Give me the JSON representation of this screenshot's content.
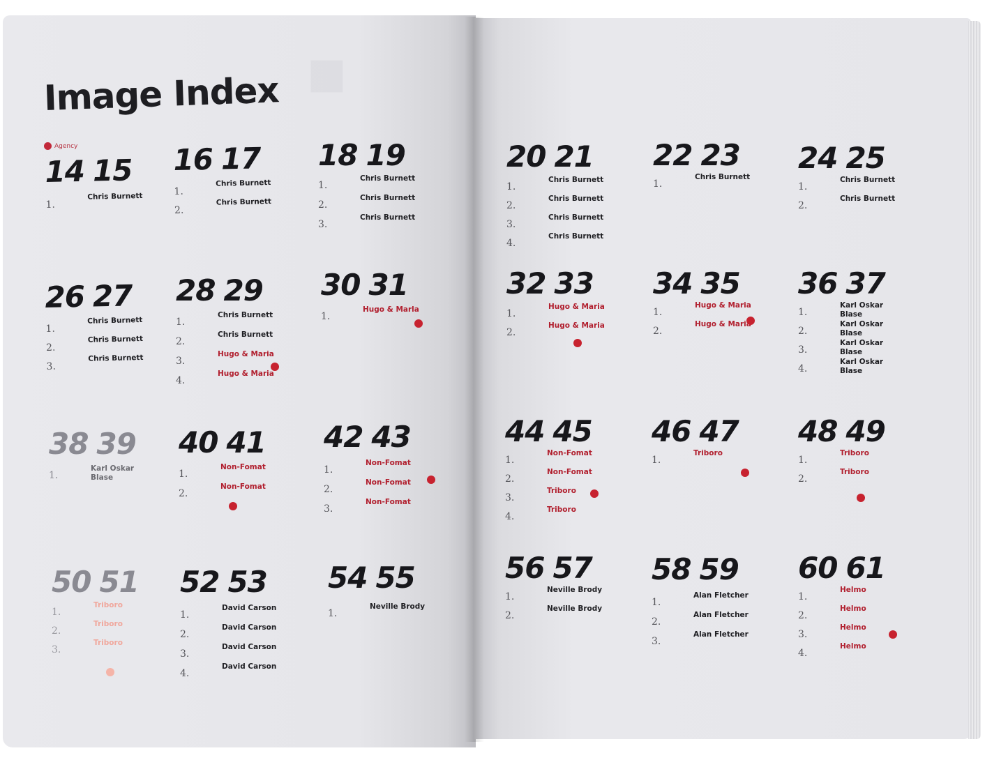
{
  "title": "Image Index",
  "agency_label": "Agency",
  "colors": {
    "accent_red": "#c7222f",
    "text": "#17171b",
    "paper": "#e7e7eb"
  },
  "entries": [
    {
      "pages": [
        "14",
        "15"
      ],
      "items": [
        {
          "n": "1.",
          "who": "Chris Burnett"
        }
      ]
    },
    {
      "pages": [
        "16",
        "17"
      ],
      "items": [
        {
          "n": "1.",
          "who": "Chris Burnett"
        },
        {
          "n": "2.",
          "who": "Chris Burnett"
        }
      ]
    },
    {
      "pages": [
        "18",
        "19"
      ],
      "items": [
        {
          "n": "1.",
          "who": "Chris Burnett"
        },
        {
          "n": "2.",
          "who": "Chris Burnett"
        },
        {
          "n": "3.",
          "who": "Chris Burnett"
        }
      ]
    },
    {
      "pages": [
        "20",
        "21"
      ],
      "items": [
        {
          "n": "1.",
          "who": "Chris Burnett"
        },
        {
          "n": "2.",
          "who": "Chris Burnett"
        },
        {
          "n": "3.",
          "who": "Chris Burnett"
        },
        {
          "n": "4.",
          "who": "Chris Burnett"
        }
      ]
    },
    {
      "pages": [
        "22",
        "23"
      ],
      "items": [
        {
          "n": "1.",
          "who": "Chris Burnett"
        }
      ]
    },
    {
      "pages": [
        "24",
        "25"
      ],
      "items": [
        {
          "n": "1.",
          "who": "Chris Burnett"
        },
        {
          "n": "2.",
          "who": "Chris Burnett"
        }
      ]
    },
    {
      "pages": [
        "26",
        "27"
      ],
      "items": [
        {
          "n": "1.",
          "who": "Chris Burnett"
        },
        {
          "n": "2.",
          "who": "Chris Burnett"
        },
        {
          "n": "3.",
          "who": "Chris Burnett"
        }
      ]
    },
    {
      "pages": [
        "28",
        "29"
      ],
      "items": [
        {
          "n": "1.",
          "who": "Chris Burnett"
        },
        {
          "n": "2.",
          "who": "Chris Burnett"
        },
        {
          "n": "3.",
          "who": "Hugo & Maria",
          "red": true
        },
        {
          "n": "4.",
          "who": "Hugo & Maria",
          "red": true
        }
      ]
    },
    {
      "pages": [
        "30",
        "31"
      ],
      "items": [
        {
          "n": "1.",
          "who": "Hugo & Marla",
          "red": true
        }
      ]
    },
    {
      "pages": [
        "32",
        "33"
      ],
      "items": [
        {
          "n": "1.",
          "who": "Hugo & Maria",
          "red": true
        },
        {
          "n": "2.",
          "who": "Hugo & Maria",
          "red": true
        }
      ]
    },
    {
      "pages": [
        "34",
        "35"
      ],
      "items": [
        {
          "n": "1.",
          "who": "Hugo & Maria",
          "red": true
        },
        {
          "n": "2.",
          "who": "Hugo & Maria",
          "red": true
        }
      ]
    },
    {
      "pages": [
        "36",
        "37"
      ],
      "items": [
        {
          "n": "1.",
          "who": "Karl Oskar Blase"
        },
        {
          "n": "2.",
          "who": "Karl Oskar Blase"
        },
        {
          "n": "3.",
          "who": "Karl Oskar Blase"
        },
        {
          "n": "4.",
          "who": "Karl Oskar Blase"
        }
      ]
    },
    {
      "pages": [
        "38",
        "39"
      ],
      "items": [
        {
          "n": "1.",
          "who": "Karl Oskar Blase"
        }
      ]
    },
    {
      "pages": [
        "40",
        "41"
      ],
      "items": [
        {
          "n": "1.",
          "who": "Non-Fomat",
          "red": true
        },
        {
          "n": "2.",
          "who": "Non-Fomat",
          "red": true
        }
      ]
    },
    {
      "pages": [
        "42",
        "43"
      ],
      "items": [
        {
          "n": "1.",
          "who": "Non-Fomat",
          "red": true
        },
        {
          "n": "2.",
          "who": "Non-Fomat",
          "red": true
        },
        {
          "n": "3.",
          "who": "Non-Fomat",
          "red": true
        }
      ]
    },
    {
      "pages": [
        "44",
        "45"
      ],
      "items": [
        {
          "n": "1.",
          "who": "Non-Fomat",
          "red": true
        },
        {
          "n": "2.",
          "who": "Non-Fomat",
          "red": true
        },
        {
          "n": "3.",
          "who": "Triboro",
          "red": true
        },
        {
          "n": "4.",
          "who": "Triboro",
          "red": true
        }
      ]
    },
    {
      "pages": [
        "46",
        "47"
      ],
      "items": [
        {
          "n": "1.",
          "who": "Triboro",
          "red": true
        }
      ]
    },
    {
      "pages": [
        "48",
        "49"
      ],
      "items": [
        {
          "n": "1.",
          "who": "Triboro",
          "red": true
        },
        {
          "n": "2.",
          "who": "Triboro",
          "red": true
        }
      ]
    },
    {
      "pages": [
        "50",
        "51"
      ],
      "items": [
        {
          "n": "1.",
          "who": "Triboro",
          "red": true
        },
        {
          "n": "2.",
          "who": "Triboro",
          "red": true
        },
        {
          "n": "3.",
          "who": "Triboro",
          "red": true
        }
      ]
    },
    {
      "pages": [
        "52",
        "53"
      ],
      "items": [
        {
          "n": "1.",
          "who": "David Carson"
        },
        {
          "n": "2.",
          "who": "David Carson"
        },
        {
          "n": "3.",
          "who": "David Carson"
        },
        {
          "n": "4.",
          "who": "David Carson"
        }
      ]
    },
    {
      "pages": [
        "54",
        "55"
      ],
      "items": [
        {
          "n": "1.",
          "who": "Neville Brody"
        }
      ]
    },
    {
      "pages": [
        "56",
        "57"
      ],
      "items": [
        {
          "n": "1.",
          "who": "Neville Brody"
        },
        {
          "n": "2.",
          "who": "Neville Brody"
        }
      ]
    },
    {
      "pages": [
        "58",
        "59"
      ],
      "items": [
        {
          "n": "1.",
          "who": "Alan Fletcher"
        },
        {
          "n": "2.",
          "who": "Alan Fletcher"
        },
        {
          "n": "3.",
          "who": "Alan Fletcher"
        }
      ]
    },
    {
      "pages": [
        "60",
        "61"
      ],
      "items": [
        {
          "n": "1.",
          "who": "Helmo",
          "red": true
        },
        {
          "n": "2.",
          "who": "Helmo",
          "red": true
        },
        {
          "n": "3.",
          "who": "Helmo",
          "red": true
        },
        {
          "n": "4.",
          "who": "Helmo",
          "red": true
        }
      ]
    }
  ]
}
